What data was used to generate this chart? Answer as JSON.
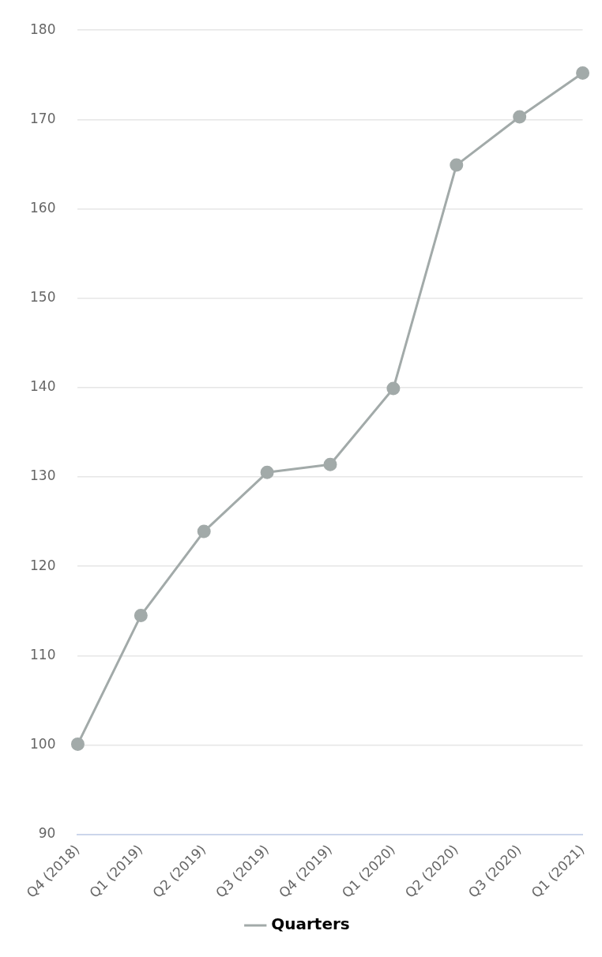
{
  "chart_data": {
    "type": "line",
    "categories": [
      "Q4 (2018)",
      "Q1 (2019)",
      "Q2 (2019)",
      "Q3 (2019)",
      "Q4 (2019)",
      "Q1 (2020)",
      "Q2 (2020)",
      "Q3 (2020)",
      "Q1 (2021)"
    ],
    "series": [
      {
        "name": "Quarters",
        "color": "#a2aaa9",
        "values": [
          100.1,
          114.5,
          123.9,
          130.5,
          131.4,
          139.9,
          164.9,
          170.3,
          175.2
        ]
      }
    ],
    "ylim": [
      90,
      180
    ],
    "yticks": [
      90,
      100,
      110,
      120,
      130,
      140,
      150,
      160,
      170,
      180
    ],
    "grid": "y",
    "legend": "bottom",
    "marker": "circle",
    "line_style": "solid"
  }
}
